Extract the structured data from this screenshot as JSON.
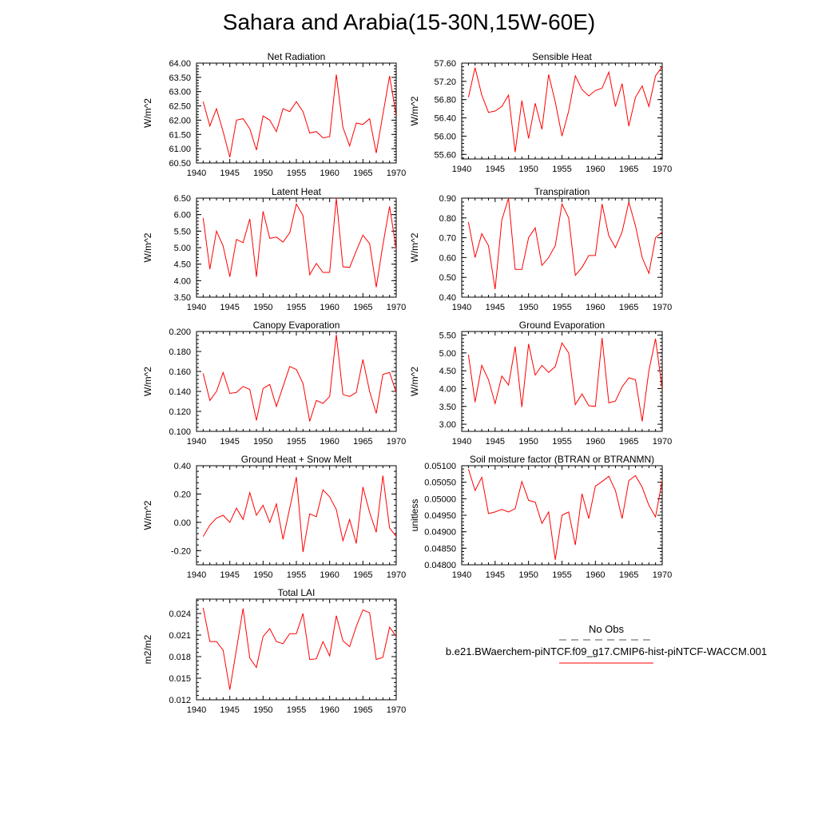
{
  "figure": {
    "title": "Sahara and Arabia(15-30N,15W-60E)",
    "line_color": "#ff0000",
    "legend": {
      "obs_label": "No Obs",
      "model_label": "b.e21.BWaerchem-piNTCF.f09_g17.CMIP6-hist-piNTCF-WACCM.001"
    }
  },
  "chart_data": [
    {
      "type": "line",
      "title": "Net Radiation",
      "ylabel": "W/m^2",
      "xlim": [
        1940,
        1970
      ],
      "ylim": [
        60.5,
        64.0
      ],
      "xticks": [
        1940,
        1945,
        1950,
        1955,
        1960,
        1965,
        1970
      ],
      "yticks": [
        60.5,
        61.0,
        61.5,
        62.0,
        62.5,
        63.0,
        63.5,
        64.0
      ],
      "ytick_labels": [
        "60.50",
        "61.00",
        "61.50",
        "62.00",
        "62.50",
        "63.00",
        "63.50",
        "64.00"
      ],
      "x": [
        1941,
        1942,
        1943,
        1944,
        1945,
        1946,
        1947,
        1948,
        1949,
        1950,
        1951,
        1952,
        1953,
        1954,
        1955,
        1956,
        1957,
        1958,
        1959,
        1960,
        1961,
        1962,
        1963,
        1964,
        1965,
        1966,
        1967,
        1968,
        1969,
        1970
      ],
      "values": [
        62.65,
        61.8,
        62.4,
        61.6,
        60.7,
        62.0,
        62.05,
        61.7,
        60.95,
        62.15,
        62.0,
        61.6,
        62.4,
        62.3,
        62.65,
        62.3,
        61.55,
        61.6,
        61.38,
        61.42,
        63.6,
        61.75,
        61.1,
        61.9,
        61.85,
        62.05,
        60.85,
        62.2,
        63.55,
        62.15
      ]
    },
    {
      "type": "line",
      "title": "Sensible Heat",
      "ylabel": "W/m^2",
      "xlim": [
        1940,
        1970
      ],
      "ylim": [
        55.5,
        57.6
      ],
      "xticks": [
        1940,
        1945,
        1950,
        1955,
        1960,
        1965,
        1970
      ],
      "yticks": [
        55.6,
        56.0,
        56.4,
        56.8,
        57.2,
        57.6
      ],
      "ytick_labels": [
        "55.60",
        "56.00",
        "56.40",
        "56.80",
        "57.20",
        "57.60"
      ],
      "x": [
        1941,
        1942,
        1943,
        1944,
        1945,
        1946,
        1947,
        1948,
        1949,
        1950,
        1951,
        1952,
        1953,
        1954,
        1955,
        1956,
        1957,
        1958,
        1959,
        1960,
        1961,
        1962,
        1963,
        1964,
        1965,
        1966,
        1967,
        1968,
        1969,
        1970
      ],
      "values": [
        56.85,
        57.5,
        56.9,
        56.52,
        56.55,
        56.65,
        56.9,
        55.65,
        56.78,
        55.95,
        56.72,
        56.15,
        57.35,
        56.75,
        56.0,
        56.55,
        57.32,
        57.02,
        56.88,
        57.0,
        57.05,
        57.4,
        56.65,
        57.15,
        56.22,
        56.85,
        57.1,
        56.65,
        57.32,
        57.52
      ]
    },
    {
      "type": "line",
      "title": "Latent Heat",
      "ylabel": "W/m^2",
      "xlim": [
        1940,
        1970
      ],
      "ylim": [
        3.5,
        6.5
      ],
      "xticks": [
        1940,
        1945,
        1950,
        1955,
        1960,
        1965,
        1970
      ],
      "yticks": [
        3.5,
        4.0,
        4.5,
        5.0,
        5.5,
        6.0,
        6.5
      ],
      "ytick_labels": [
        "3.50",
        "4.00",
        "4.50",
        "5.00",
        "5.50",
        "6.00",
        "6.50"
      ],
      "x": [
        1941,
        1942,
        1943,
        1944,
        1945,
        1946,
        1947,
        1948,
        1949,
        1950,
        1951,
        1952,
        1953,
        1954,
        1955,
        1956,
        1957,
        1958,
        1959,
        1960,
        1961,
        1962,
        1963,
        1964,
        1965,
        1966,
        1967,
        1968,
        1969,
        1970
      ],
      "values": [
        5.9,
        4.35,
        5.5,
        5.05,
        4.12,
        5.25,
        5.15,
        5.87,
        4.12,
        6.1,
        5.28,
        5.32,
        5.17,
        5.45,
        6.32,
        5.97,
        4.18,
        4.52,
        4.25,
        4.25,
        6.5,
        4.42,
        4.4,
        4.9,
        5.38,
        5.12,
        3.8,
        5.08,
        6.25,
        4.95
      ]
    },
    {
      "type": "line",
      "title": "Transpiration",
      "ylabel": "W/m^2",
      "xlim": [
        1940,
        1970
      ],
      "ylim": [
        0.4,
        0.9
      ],
      "xticks": [
        1940,
        1945,
        1950,
        1955,
        1960,
        1965,
        1970
      ],
      "yticks": [
        0.4,
        0.5,
        0.6,
        0.7,
        0.8,
        0.9
      ],
      "ytick_labels": [
        "0.40",
        "0.50",
        "0.60",
        "0.70",
        "0.80",
        "0.90"
      ],
      "x": [
        1941,
        1942,
        1943,
        1944,
        1945,
        1946,
        1947,
        1948,
        1949,
        1950,
        1951,
        1952,
        1953,
        1954,
        1955,
        1956,
        1957,
        1958,
        1959,
        1960,
        1961,
        1962,
        1963,
        1964,
        1965,
        1966,
        1967,
        1968,
        1969,
        1970
      ],
      "values": [
        0.78,
        0.6,
        0.72,
        0.66,
        0.44,
        0.79,
        0.9,
        0.54,
        0.54,
        0.7,
        0.75,
        0.56,
        0.6,
        0.66,
        0.87,
        0.8,
        0.51,
        0.55,
        0.61,
        0.61,
        0.87,
        0.71,
        0.65,
        0.73,
        0.88,
        0.76,
        0.6,
        0.52,
        0.7,
        0.73
      ]
    },
    {
      "type": "line",
      "title": "Canopy Evaporation",
      "ylabel": "W/m^2",
      "xlim": [
        1940,
        1970
      ],
      "ylim": [
        0.1,
        0.2
      ],
      "xticks": [
        1940,
        1945,
        1950,
        1955,
        1960,
        1965,
        1970
      ],
      "yticks": [
        0.1,
        0.12,
        0.14,
        0.16,
        0.18,
        0.2
      ],
      "ytick_labels": [
        "0.100",
        "0.120",
        "0.140",
        "0.160",
        "0.180",
        "0.200"
      ],
      "x": [
        1941,
        1942,
        1943,
        1944,
        1945,
        1946,
        1947,
        1948,
        1949,
        1950,
        1951,
        1952,
        1953,
        1954,
        1955,
        1956,
        1957,
        1958,
        1959,
        1960,
        1961,
        1962,
        1963,
        1964,
        1965,
        1966,
        1967,
        1968,
        1969,
        1970
      ],
      "values": [
        0.158,
        0.131,
        0.14,
        0.159,
        0.138,
        0.139,
        0.145,
        0.142,
        0.111,
        0.143,
        0.147,
        0.125,
        0.145,
        0.165,
        0.162,
        0.148,
        0.11,
        0.131,
        0.128,
        0.135,
        0.197,
        0.137,
        0.135,
        0.139,
        0.172,
        0.14,
        0.118,
        0.157,
        0.159,
        0.139
      ]
    },
    {
      "type": "line",
      "title": "Ground Evaporation",
      "ylabel": "W/m^2",
      "xlim": [
        1940,
        1970
      ],
      "ylim": [
        2.8,
        5.6
      ],
      "xticks": [
        1940,
        1945,
        1950,
        1955,
        1960,
        1965,
        1970
      ],
      "yticks": [
        3.0,
        3.5,
        4.0,
        4.5,
        5.0,
        5.5
      ],
      "ytick_labels": [
        "3.00",
        "3.50",
        "4.00",
        "4.50",
        "5.00",
        "5.50"
      ],
      "x": [
        1941,
        1942,
        1943,
        1944,
        1945,
        1946,
        1947,
        1948,
        1949,
        1950,
        1951,
        1952,
        1953,
        1954,
        1955,
        1956,
        1957,
        1958,
        1959,
        1960,
        1961,
        1962,
        1963,
        1964,
        1965,
        1966,
        1967,
        1968,
        1969,
        1970
      ],
      "values": [
        4.95,
        3.62,
        4.65,
        4.25,
        3.58,
        4.35,
        4.1,
        5.18,
        3.48,
        5.25,
        4.38,
        4.65,
        4.45,
        4.62,
        5.28,
        5.0,
        3.55,
        3.85,
        3.52,
        3.5,
        5.42,
        3.6,
        3.65,
        4.05,
        4.3,
        4.25,
        3.08,
        4.5,
        5.4,
        3.98
      ]
    },
    {
      "type": "line",
      "title": "Ground Heat + Snow Melt",
      "ylabel": "W/m^2",
      "xlim": [
        1940,
        1970
      ],
      "ylim": [
        -0.3,
        0.4
      ],
      "xticks": [
        1940,
        1945,
        1950,
        1955,
        1960,
        1965,
        1970
      ],
      "yticks": [
        -0.2,
        0.0,
        0.2,
        0.4
      ],
      "ytick_labels": [
        "-0.20",
        "0.00",
        "0.20",
        "0.40"
      ],
      "x": [
        1941,
        1942,
        1943,
        1944,
        1945,
        1946,
        1947,
        1948,
        1949,
        1950,
        1951,
        1952,
        1953,
        1954,
        1955,
        1956,
        1957,
        1958,
        1959,
        1960,
        1961,
        1962,
        1963,
        1964,
        1965,
        1966,
        1967,
        1968,
        1969,
        1970
      ],
      "values": [
        -0.1,
        -0.02,
        0.03,
        0.05,
        0.0,
        0.1,
        0.02,
        0.21,
        0.05,
        0.12,
        0.0,
        0.13,
        -0.12,
        0.1,
        0.32,
        -0.21,
        0.06,
        0.04,
        0.23,
        0.18,
        0.09,
        -0.13,
        0.02,
        -0.15,
        0.25,
        0.07,
        -0.07,
        0.33,
        -0.04,
        -0.1
      ]
    },
    {
      "type": "line",
      "title": "Soil moisture factor (BTRAN or BTRANMN)",
      "ylabel": "unitless",
      "xlim": [
        1940,
        1970
      ],
      "ylim": [
        0.048,
        0.051
      ],
      "xticks": [
        1940,
        1945,
        1950,
        1955,
        1960,
        1965,
        1970
      ],
      "yticks": [
        0.048,
        0.0485,
        0.049,
        0.0495,
        0.05,
        0.0505,
        0.051
      ],
      "ytick_labels": [
        "0.04800",
        "0.04850",
        "0.04900",
        "0.04950",
        "0.05000",
        "0.05050",
        "0.05100"
      ],
      "x": [
        1941,
        1942,
        1943,
        1944,
        1945,
        1946,
        1947,
        1948,
        1949,
        1950,
        1951,
        1952,
        1953,
        1954,
        1955,
        1956,
        1957,
        1958,
        1959,
        1960,
        1961,
        1962,
        1963,
        1964,
        1965,
        1966,
        1967,
        1968,
        1969,
        1970
      ],
      "values": [
        0.0509,
        0.05025,
        0.05065,
        0.04955,
        0.0496,
        0.04968,
        0.0496,
        0.0497,
        0.05052,
        0.04995,
        0.0499,
        0.04925,
        0.0496,
        0.04815,
        0.0495,
        0.0496,
        0.0486,
        0.05015,
        0.0494,
        0.05038,
        0.05052,
        0.05068,
        0.05025,
        0.0494,
        0.05055,
        0.0507,
        0.05035,
        0.0498,
        0.04945,
        0.05055
      ]
    },
    {
      "type": "line",
      "title": "Total LAI",
      "ylabel": "m2/m2",
      "xlim": [
        1940,
        1970
      ],
      "ylim": [
        0.012,
        0.026
      ],
      "xticks": [
        1940,
        1945,
        1950,
        1955,
        1960,
        1965,
        1970
      ],
      "yticks": [
        0.012,
        0.015,
        0.018,
        0.021,
        0.024
      ],
      "ytick_labels": [
        "0.012",
        "0.015",
        "0.018",
        "0.021",
        "0.024"
      ],
      "x": [
        1941,
        1942,
        1943,
        1944,
        1945,
        1946,
        1947,
        1948,
        1949,
        1950,
        1951,
        1952,
        1953,
        1954,
        1955,
        1956,
        1957,
        1958,
        1959,
        1960,
        1961,
        1962,
        1963,
        1964,
        1965,
        1966,
        1967,
        1968,
        1969,
        1970
      ],
      "values": [
        0.0248,
        0.0201,
        0.0201,
        0.0189,
        0.0134,
        0.019,
        0.0247,
        0.0178,
        0.0165,
        0.0208,
        0.0219,
        0.0201,
        0.0198,
        0.0212,
        0.0212,
        0.024,
        0.0176,
        0.0177,
        0.0201,
        0.0181,
        0.0237,
        0.0202,
        0.0194,
        0.0222,
        0.0245,
        0.0241,
        0.0176,
        0.0179,
        0.0221,
        0.0208
      ]
    }
  ]
}
